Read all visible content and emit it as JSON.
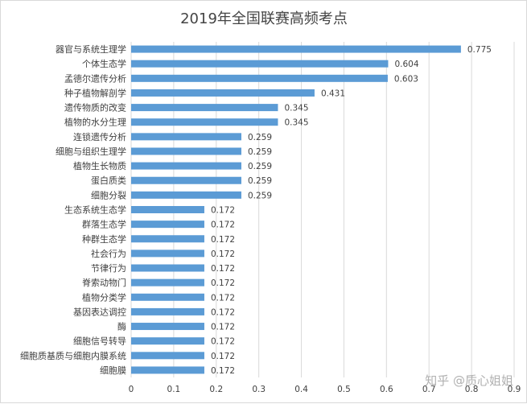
{
  "chart_data": {
    "type": "bar",
    "orientation": "horizontal",
    "title": "2019年全国联赛高频考点",
    "categories": [
      "器官与系统生理学",
      "个体生态学",
      "孟德尔遗传分析",
      "种子植物解剖学",
      "遗传物质的改变",
      "植物的水分生理",
      "连锁遗传分析",
      "细胞与组织生理学",
      "植物生长物质",
      "蛋白质类",
      "细胞分裂",
      "生态系统生态学",
      "群落生态学",
      "种群生态学",
      "社会行为",
      "节律行为",
      "脊索动物门",
      "植物分类学",
      "基因表达调控",
      "酶",
      "细胞信号转导",
      "细胞质基质与细胞内膜系统",
      "细胞膜"
    ],
    "values": [
      0.775,
      0.604,
      0.603,
      0.431,
      0.345,
      0.345,
      0.259,
      0.259,
      0.259,
      0.259,
      0.259,
      0.172,
      0.172,
      0.172,
      0.172,
      0.172,
      0.172,
      0.172,
      0.172,
      0.172,
      0.172,
      0.172,
      0.172
    ],
    "value_labels": [
      "0.775",
      "0.604",
      "0.603",
      "0.431",
      "0.345",
      "0.345",
      "0.259",
      "0.259",
      "0.259",
      "0.259",
      "0.259",
      "0.172",
      "0.172",
      "0.172",
      "0.172",
      "0.172",
      "0.172",
      "0.172",
      "0.172",
      "0.172",
      "0.172",
      "0.172",
      "0.172"
    ],
    "xlim": [
      0,
      0.9
    ],
    "x_ticks": [
      "0",
      "0.1",
      "0.2",
      "0.3",
      "0.4",
      "0.5",
      "0.6",
      "0.7",
      "0.8",
      "0.9"
    ],
    "grid": "vertical",
    "legend": "none",
    "bar_color": "#5b9bd5"
  },
  "watermark": {
    "text": "知乎 @质心姐姐"
  }
}
